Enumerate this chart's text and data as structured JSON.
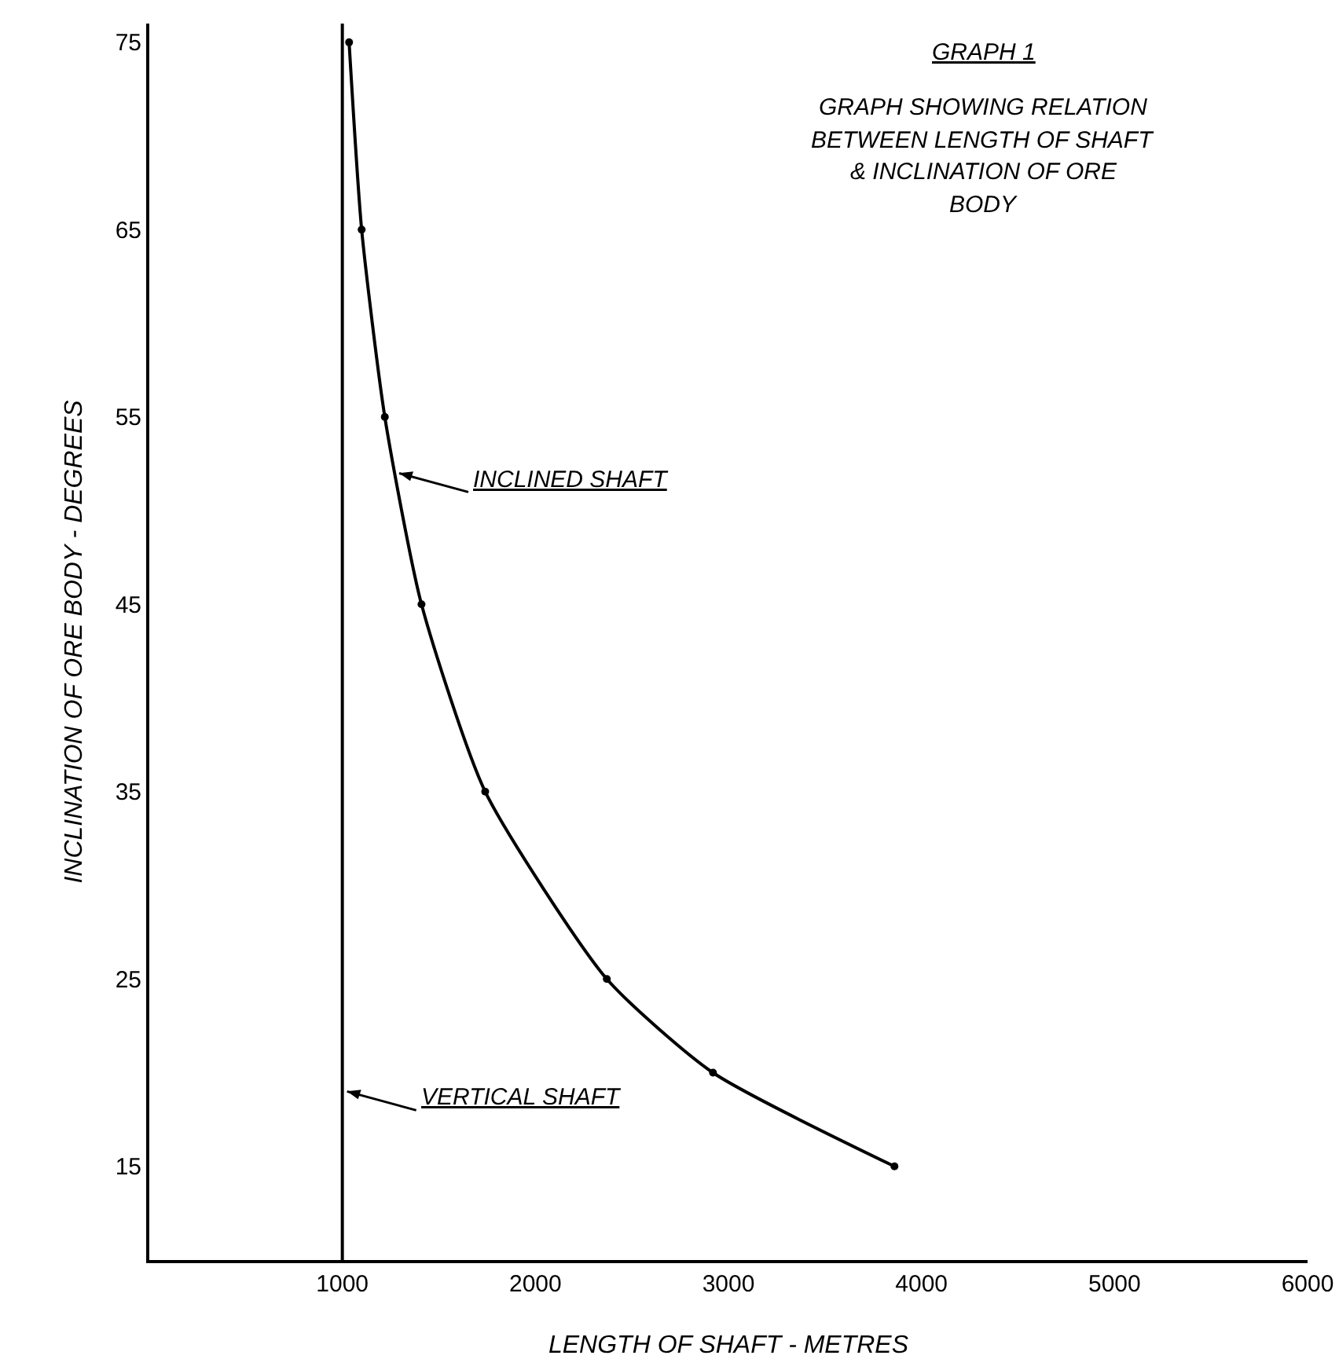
{
  "chart_data": {
    "type": "line",
    "title": "GRAPH 1",
    "subtitle": "GRAPH SHOWING RELATION BETWEEN LENGTH OF SHAFT & INCLINATION OF ORE BODY",
    "xlabel": "LENGTH OF SHAFT - METRES",
    "ylabel": "INCLINATION OF ORE BODY - DEGREES",
    "series": [
      {
        "color": "#000000",
        "x": [
          1035,
          1100,
          1220,
          1410,
          1740,
          2370,
          2920,
          3860
        ],
        "values": [
          75,
          65,
          55,
          45,
          35,
          25,
          20,
          15
        ]
      }
    ],
    "ref_lines": [
      {
        "axis": "x",
        "value": 1000,
        "color": "#000000"
      }
    ],
    "annotations": [
      {
        "text": "INCLINED SHAFT",
        "x": 1270,
        "y": 52
      },
      {
        "text": "VERTICAL SHAFT",
        "x": 1000,
        "y": 19
      }
    ],
    "xlim": [
      0,
      6000
    ],
    "xticks": [
      1000,
      2000,
      3000,
      4000,
      5000,
      6000
    ],
    "ylim": [
      10,
      76
    ],
    "yticks": [
      15,
      25,
      35,
      45,
      55,
      65,
      75
    ],
    "grid": false,
    "marker": "circle",
    "line_style": "solid"
  }
}
